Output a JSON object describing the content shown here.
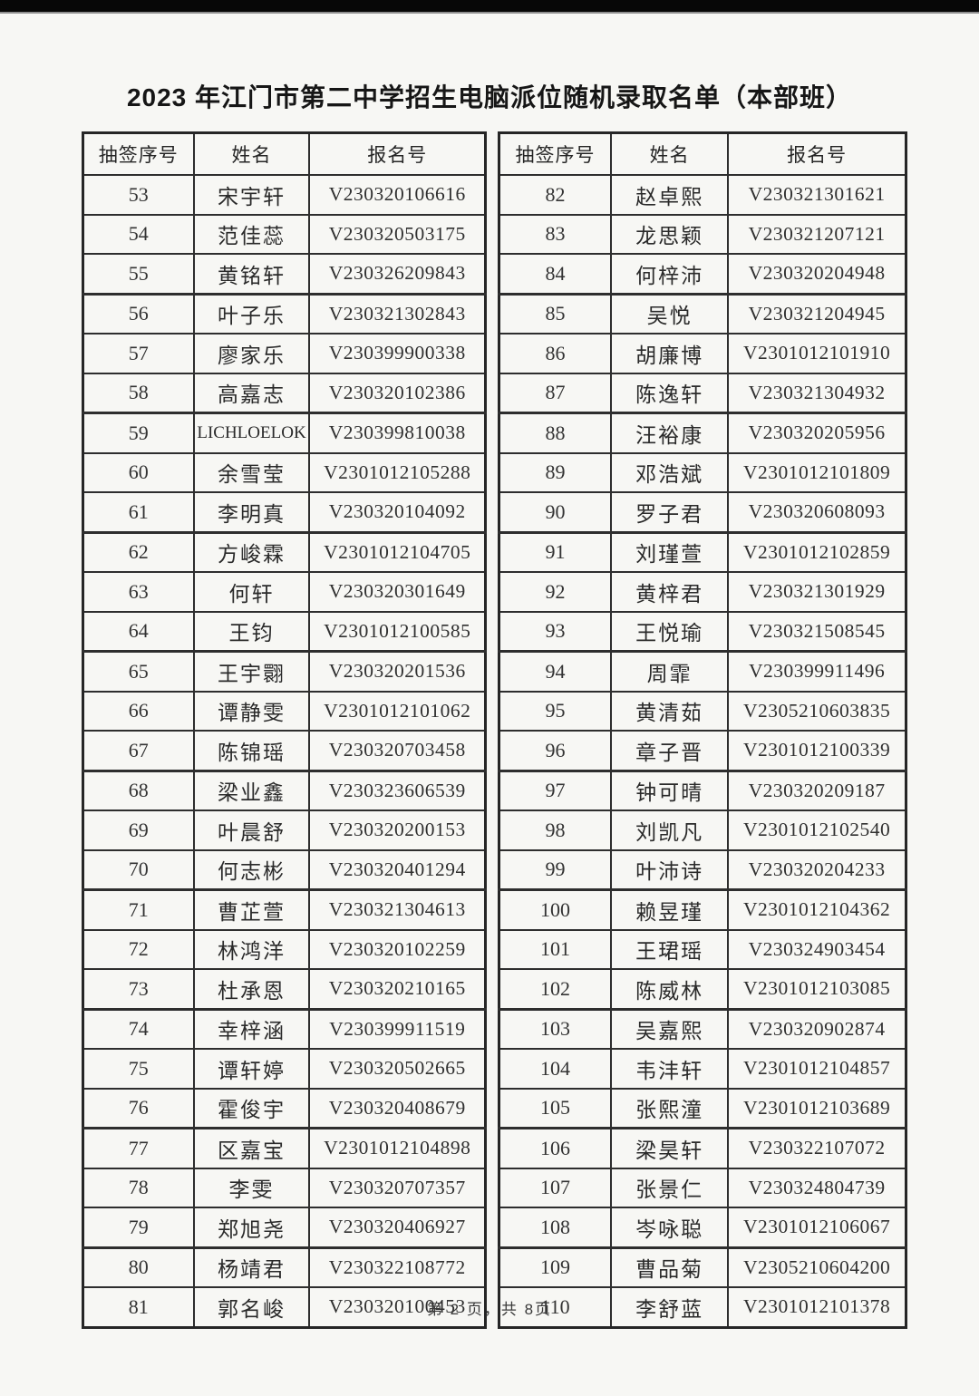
{
  "page": {
    "title": "2023 年江门市第二中学招生电脑派位随机录取名单（本部班）",
    "footer": "第 2 页，共 8页"
  },
  "columns": [
    "抽签序号",
    "姓名",
    "报名号"
  ],
  "tables": {
    "left": {
      "rows": [
        [
          "53",
          "宋宇轩",
          "V230320106616"
        ],
        [
          "54",
          "范佳蕊",
          "V230320503175"
        ],
        [
          "55",
          "黄铭轩",
          "V230326209843"
        ],
        [
          "56",
          "叶子乐",
          "V230321302843"
        ],
        [
          "57",
          "廖家乐",
          "V230399900338"
        ],
        [
          "58",
          "高嘉志",
          "V230320102386"
        ],
        [
          "59",
          "LICHLOELOK",
          "V230399810038"
        ],
        [
          "60",
          "余雪莹",
          "V2301012105288"
        ],
        [
          "61",
          "李明真",
          "V230320104092"
        ],
        [
          "62",
          "方峻霖",
          "V2301012104705"
        ],
        [
          "63",
          "何轩",
          "V230320301649"
        ],
        [
          "64",
          "王钧",
          "V2301012100585"
        ],
        [
          "65",
          "王宇翾",
          "V230320201536"
        ],
        [
          "66",
          "谭静雯",
          "V2301012101062"
        ],
        [
          "67",
          "陈锦瑶",
          "V230320703458"
        ],
        [
          "68",
          "梁业鑫",
          "V230323606539"
        ],
        [
          "69",
          "叶晨舒",
          "V230320200153"
        ],
        [
          "70",
          "何志彬",
          "V230320401294"
        ],
        [
          "71",
          "曹芷萱",
          "V230321304613"
        ],
        [
          "72",
          "林鸿洋",
          "V230320102259"
        ],
        [
          "73",
          "杜承恩",
          "V230320210165"
        ],
        [
          "74",
          "幸梓涵",
          "V230399911519"
        ],
        [
          "75",
          "谭轩婷",
          "V230320502665"
        ],
        [
          "76",
          "霍俊宇",
          "V230320408679"
        ],
        [
          "77",
          "区嘉宝",
          "V2301012104898"
        ],
        [
          "78",
          "李雯",
          "V230320707357"
        ],
        [
          "79",
          "郑旭尧",
          "V230320406927"
        ],
        [
          "80",
          "杨靖君",
          "V230322108772"
        ],
        [
          "81",
          "郭名峻",
          "V230320100453"
        ]
      ]
    },
    "right": {
      "rows": [
        [
          "82",
          "赵卓熙",
          "V230321301621"
        ],
        [
          "83",
          "龙思颖",
          "V230321207121"
        ],
        [
          "84",
          "何梓沛",
          "V230320204948"
        ],
        [
          "85",
          "吴悦",
          "V230321204945"
        ],
        [
          "86",
          "胡廉博",
          "V2301012101910"
        ],
        [
          "87",
          "陈逸轩",
          "V230321304932"
        ],
        [
          "88",
          "汪裕康",
          "V230320205956"
        ],
        [
          "89",
          "邓浩斌",
          "V2301012101809"
        ],
        [
          "90",
          "罗子君",
          "V230320608093"
        ],
        [
          "91",
          "刘瑾萱",
          "V2301012102859"
        ],
        [
          "92",
          "黄梓君",
          "V230321301929"
        ],
        [
          "93",
          "王悦瑜",
          "V230321508545"
        ],
        [
          "94",
          "周霏",
          "V230399911496"
        ],
        [
          "95",
          "黄清茹",
          "V2305210603835"
        ],
        [
          "96",
          "章子晋",
          "V2301012100339"
        ],
        [
          "97",
          "钟可晴",
          "V230320209187"
        ],
        [
          "98",
          "刘凯凡",
          "V2301012102540"
        ],
        [
          "99",
          "叶沛诗",
          "V230320204233"
        ],
        [
          "100",
          "赖昱瑾",
          "V2301012104362"
        ],
        [
          "101",
          "王珺瑶",
          "V230324903454"
        ],
        [
          "102",
          "陈威林",
          "V2301012103085"
        ],
        [
          "103",
          "吴嘉熙",
          "V230320902874"
        ],
        [
          "104",
          "韦沣轩",
          "V2301012104857"
        ],
        [
          "105",
          "张熙潼",
          "V2301012103689"
        ],
        [
          "106",
          "梁昊轩",
          "V230322107072"
        ],
        [
          "107",
          "张景仁",
          "V230324804739"
        ],
        [
          "108",
          "岑咏聪",
          "V2301012106067"
        ],
        [
          "109",
          "曹品菊",
          "V2305210604200"
        ],
        [
          "110",
          "李舒蓝",
          "V2301012101378"
        ]
      ]
    }
  }
}
